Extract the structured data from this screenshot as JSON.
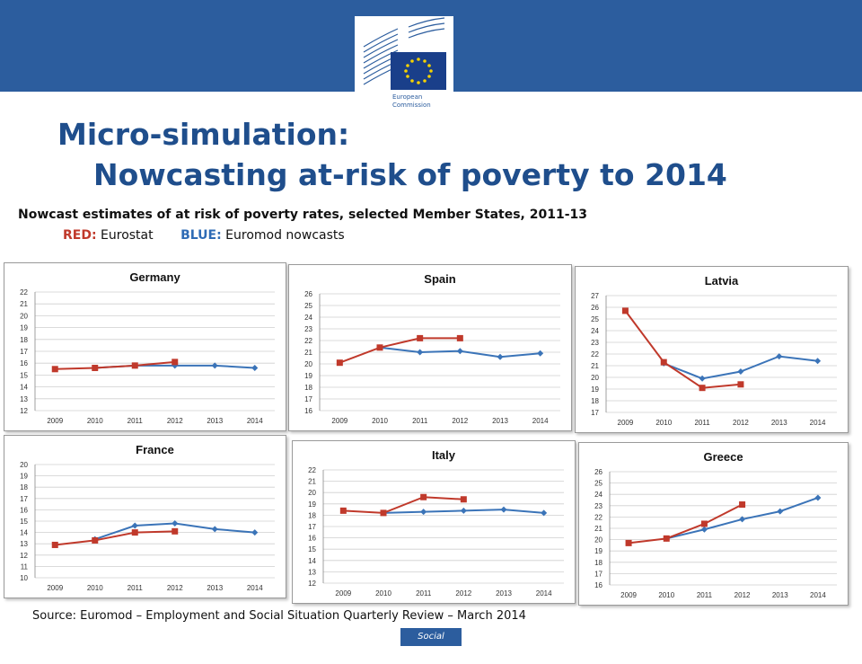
{
  "header": {
    "logo_text_1": "European",
    "logo_text_2": "Commission",
    "title_line1": "Micro-simulation:",
    "title_line2": "Nowcasting at-risk of poverty to 2014",
    "subtitle": "Nowcast estimates of at risk of poverty rates, selected Member States, 2011-13",
    "legend_red_label": "RED:",
    "legend_red_text": " Eurostat",
    "legend_blue_label": "BLUE:",
    "legend_blue_text": " Euromod nowcasts"
  },
  "footer": {
    "source": "Source: Euromod – Employment and Social Situation Quarterly Review – March 2014",
    "badge": "Social Europe"
  },
  "colors": {
    "eurostat": "#c0392b",
    "euromod": "#3b74b8",
    "brand_blue": "#2c5d9e",
    "title_blue": "#1f4e8c"
  },
  "chart_data": [
    {
      "type": "line",
      "title": "Germany",
      "x": [
        "2009",
        "2010",
        "2011",
        "2012",
        "2013",
        "2014"
      ],
      "ylim": [
        12,
        22
      ],
      "yticks": [
        12,
        13,
        14,
        15,
        16,
        17,
        18,
        19,
        20,
        21,
        22
      ],
      "series": [
        {
          "values": [
            15.5,
            15.6,
            15.8,
            16.1,
            null,
            null
          ],
          "color": "red"
        },
        {
          "values": [
            null,
            15.6,
            15.8,
            15.8,
            15.8,
            15.6
          ],
          "color": "blue"
        }
      ]
    },
    {
      "type": "line",
      "title": "Spain",
      "x": [
        "2009",
        "2010",
        "2011",
        "2012",
        "2013",
        "2014"
      ],
      "ylim": [
        16,
        26
      ],
      "yticks": [
        16,
        17,
        18,
        19,
        20,
        21,
        22,
        23,
        24,
        25,
        26
      ],
      "series": [
        {
          "values": [
            20.1,
            21.4,
            22.2,
            22.2,
            null,
            null
          ],
          "color": "red"
        },
        {
          "values": [
            null,
            21.4,
            21.0,
            21.1,
            20.6,
            20.9
          ],
          "color": "blue"
        }
      ]
    },
    {
      "type": "line",
      "title": "Latvia",
      "x": [
        "2009",
        "2010",
        "2011",
        "2012",
        "2013",
        "2014"
      ],
      "ylim": [
        17,
        27
      ],
      "yticks": [
        17,
        18,
        19,
        20,
        21,
        22,
        23,
        24,
        25,
        26,
        27
      ],
      "series": [
        {
          "values": [
            25.7,
            21.3,
            19.1,
            19.4,
            null,
            null
          ],
          "color": "red"
        },
        {
          "values": [
            null,
            21.2,
            19.9,
            20.5,
            21.8,
            21.4
          ],
          "color": "blue"
        }
      ]
    },
    {
      "type": "line",
      "title": "France",
      "x": [
        "2009",
        "2010",
        "2011",
        "2012",
        "2013",
        "2014"
      ],
      "ylim": [
        10,
        20
      ],
      "yticks": [
        10,
        11,
        12,
        13,
        14,
        15,
        16,
        17,
        18,
        19,
        20
      ],
      "series": [
        {
          "values": [
            12.9,
            13.3,
            14.0,
            14.1,
            null,
            null
          ],
          "color": "red"
        },
        {
          "values": [
            null,
            13.4,
            14.6,
            14.8,
            14.3,
            14.0
          ],
          "color": "blue"
        }
      ]
    },
    {
      "type": "line",
      "title": "Italy",
      "x": [
        "2009",
        "2010",
        "2011",
        "2012",
        "2013",
        "2014"
      ],
      "ylim": [
        12,
        22
      ],
      "yticks": [
        12,
        13,
        14,
        15,
        16,
        17,
        18,
        19,
        20,
        21,
        22
      ],
      "series": [
        {
          "values": [
            18.4,
            18.2,
            19.6,
            19.4,
            null,
            null
          ],
          "color": "red"
        },
        {
          "values": [
            null,
            18.2,
            18.3,
            18.4,
            18.5,
            18.2
          ],
          "color": "blue"
        }
      ]
    },
    {
      "type": "line",
      "title": "Greece",
      "x": [
        "2009",
        "2010",
        "2011",
        "2012",
        "2013",
        "2014"
      ],
      "ylim": [
        16,
        26
      ],
      "yticks": [
        16,
        17,
        18,
        19,
        20,
        21,
        22,
        23,
        24,
        25,
        26
      ],
      "series": [
        {
          "values": [
            19.7,
            20.1,
            21.4,
            23.1,
            null,
            null
          ],
          "color": "red"
        },
        {
          "values": [
            null,
            20.1,
            20.9,
            21.8,
            22.5,
            23.7
          ],
          "color": "blue"
        }
      ]
    }
  ]
}
